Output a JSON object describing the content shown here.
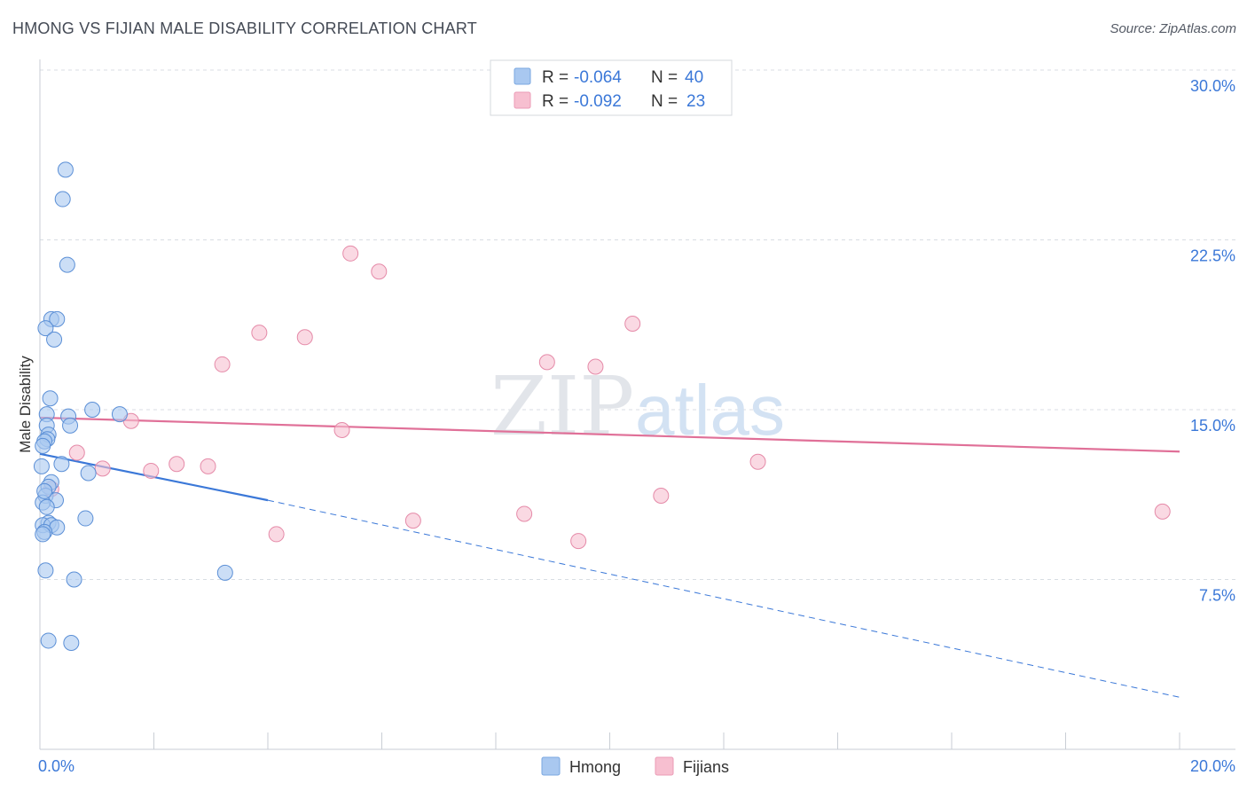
{
  "title": "HMONG VS FIJIAN MALE DISABILITY CORRELATION CHART",
  "source": "Source: ZipAtlas.com",
  "watermark": {
    "zip": "ZIP",
    "atlas": "atlas"
  },
  "legend_top": [
    {
      "r_label": "R = ",
      "r_value": "-0.064",
      "n_label": "N = ",
      "n_value": "40",
      "color": "#a9c8f0"
    },
    {
      "r_label": "R = ",
      "r_value": "-0.092",
      "n_label": "N = ",
      "n_value": "23",
      "color": "#f7bfd0"
    }
  ],
  "legend_bottom": [
    {
      "label": "Hmong",
      "color": "#a9c8f0"
    },
    {
      "label": "Fijians",
      "color": "#f7bfd0"
    }
  ],
  "colors": {
    "hmong_fill": "#a9c8f0",
    "hmong_stroke": "#5b8fd6",
    "hmong_line": "#3b78d8",
    "fijian_fill": "#f7bfd0",
    "fijian_stroke": "#e58aa8",
    "fijian_line": "#e07098",
    "tick_label": "#3b78d8",
    "grid": "#d8dde3"
  },
  "chart_data": {
    "type": "scatter",
    "title": "HMONG VS FIJIAN MALE DISABILITY CORRELATION CHART",
    "xlabel": "",
    "ylabel": "Male Disability",
    "xlim": [
      0,
      20
    ],
    "ylim": [
      0,
      30
    ],
    "x_tick_labels": [
      "0.0%",
      "20.0%"
    ],
    "y_ticks": [
      7.5,
      15.0,
      22.5,
      30.0
    ],
    "y_tick_labels": [
      "7.5%",
      "15.0%",
      "22.5%",
      "30.0%"
    ],
    "grid": true,
    "legend_position": "top-center",
    "series": [
      {
        "name": "Hmong",
        "r": -0.064,
        "n": 40,
        "points": [
          [
            0.45,
            25.6
          ],
          [
            0.4,
            24.3
          ],
          [
            0.48,
            21.4
          ],
          [
            0.2,
            19.0
          ],
          [
            0.3,
            19.0
          ],
          [
            0.1,
            18.6
          ],
          [
            0.25,
            18.1
          ],
          [
            0.18,
            15.5
          ],
          [
            0.92,
            15.0
          ],
          [
            1.4,
            14.8
          ],
          [
            0.12,
            14.8
          ],
          [
            0.5,
            14.7
          ],
          [
            0.53,
            14.3
          ],
          [
            0.12,
            14.3
          ],
          [
            0.15,
            13.9
          ],
          [
            0.13,
            13.7
          ],
          [
            0.08,
            13.6
          ],
          [
            0.05,
            13.4
          ],
          [
            0.38,
            12.6
          ],
          [
            0.03,
            12.5
          ],
          [
            0.85,
            12.2
          ],
          [
            0.2,
            11.8
          ],
          [
            0.15,
            11.6
          ],
          [
            0.1,
            11.2
          ],
          [
            0.28,
            11.0
          ],
          [
            0.05,
            10.9
          ],
          [
            0.12,
            10.7
          ],
          [
            0.8,
            10.2
          ],
          [
            0.15,
            10.0
          ],
          [
            0.05,
            9.9
          ],
          [
            0.2,
            9.9
          ],
          [
            0.3,
            9.8
          ],
          [
            0.08,
            9.6
          ],
          [
            0.05,
            9.5
          ],
          [
            0.1,
            7.9
          ],
          [
            3.25,
            7.8
          ],
          [
            0.6,
            7.5
          ],
          [
            0.15,
            4.8
          ],
          [
            0.55,
            4.7
          ],
          [
            0.08,
            11.4
          ]
        ],
        "trend": {
          "x": [
            0,
            4.0
          ],
          "y": [
            13.05,
            11.0
          ],
          "extended_to": [
            20,
            2.3
          ]
        }
      },
      {
        "name": "Fijians",
        "r": -0.092,
        "n": 23,
        "points": [
          [
            5.45,
            21.9
          ],
          [
            5.95,
            21.1
          ],
          [
            10.4,
            18.8
          ],
          [
            3.85,
            18.4
          ],
          [
            4.65,
            18.2
          ],
          [
            3.2,
            17.0
          ],
          [
            8.9,
            17.1
          ],
          [
            9.75,
            16.9
          ],
          [
            1.6,
            14.5
          ],
          [
            5.3,
            14.1
          ],
          [
            0.65,
            13.1
          ],
          [
            12.6,
            12.7
          ],
          [
            2.4,
            12.6
          ],
          [
            2.95,
            12.5
          ],
          [
            1.1,
            12.4
          ],
          [
            1.95,
            12.3
          ],
          [
            0.2,
            11.5
          ],
          [
            10.9,
            11.2
          ],
          [
            19.7,
            10.5
          ],
          [
            8.5,
            10.4
          ],
          [
            6.55,
            10.1
          ],
          [
            4.15,
            9.5
          ],
          [
            9.45,
            9.2
          ]
        ],
        "trend": {
          "x": [
            0,
            20
          ],
          "y": [
            14.65,
            13.15
          ]
        }
      }
    ]
  }
}
